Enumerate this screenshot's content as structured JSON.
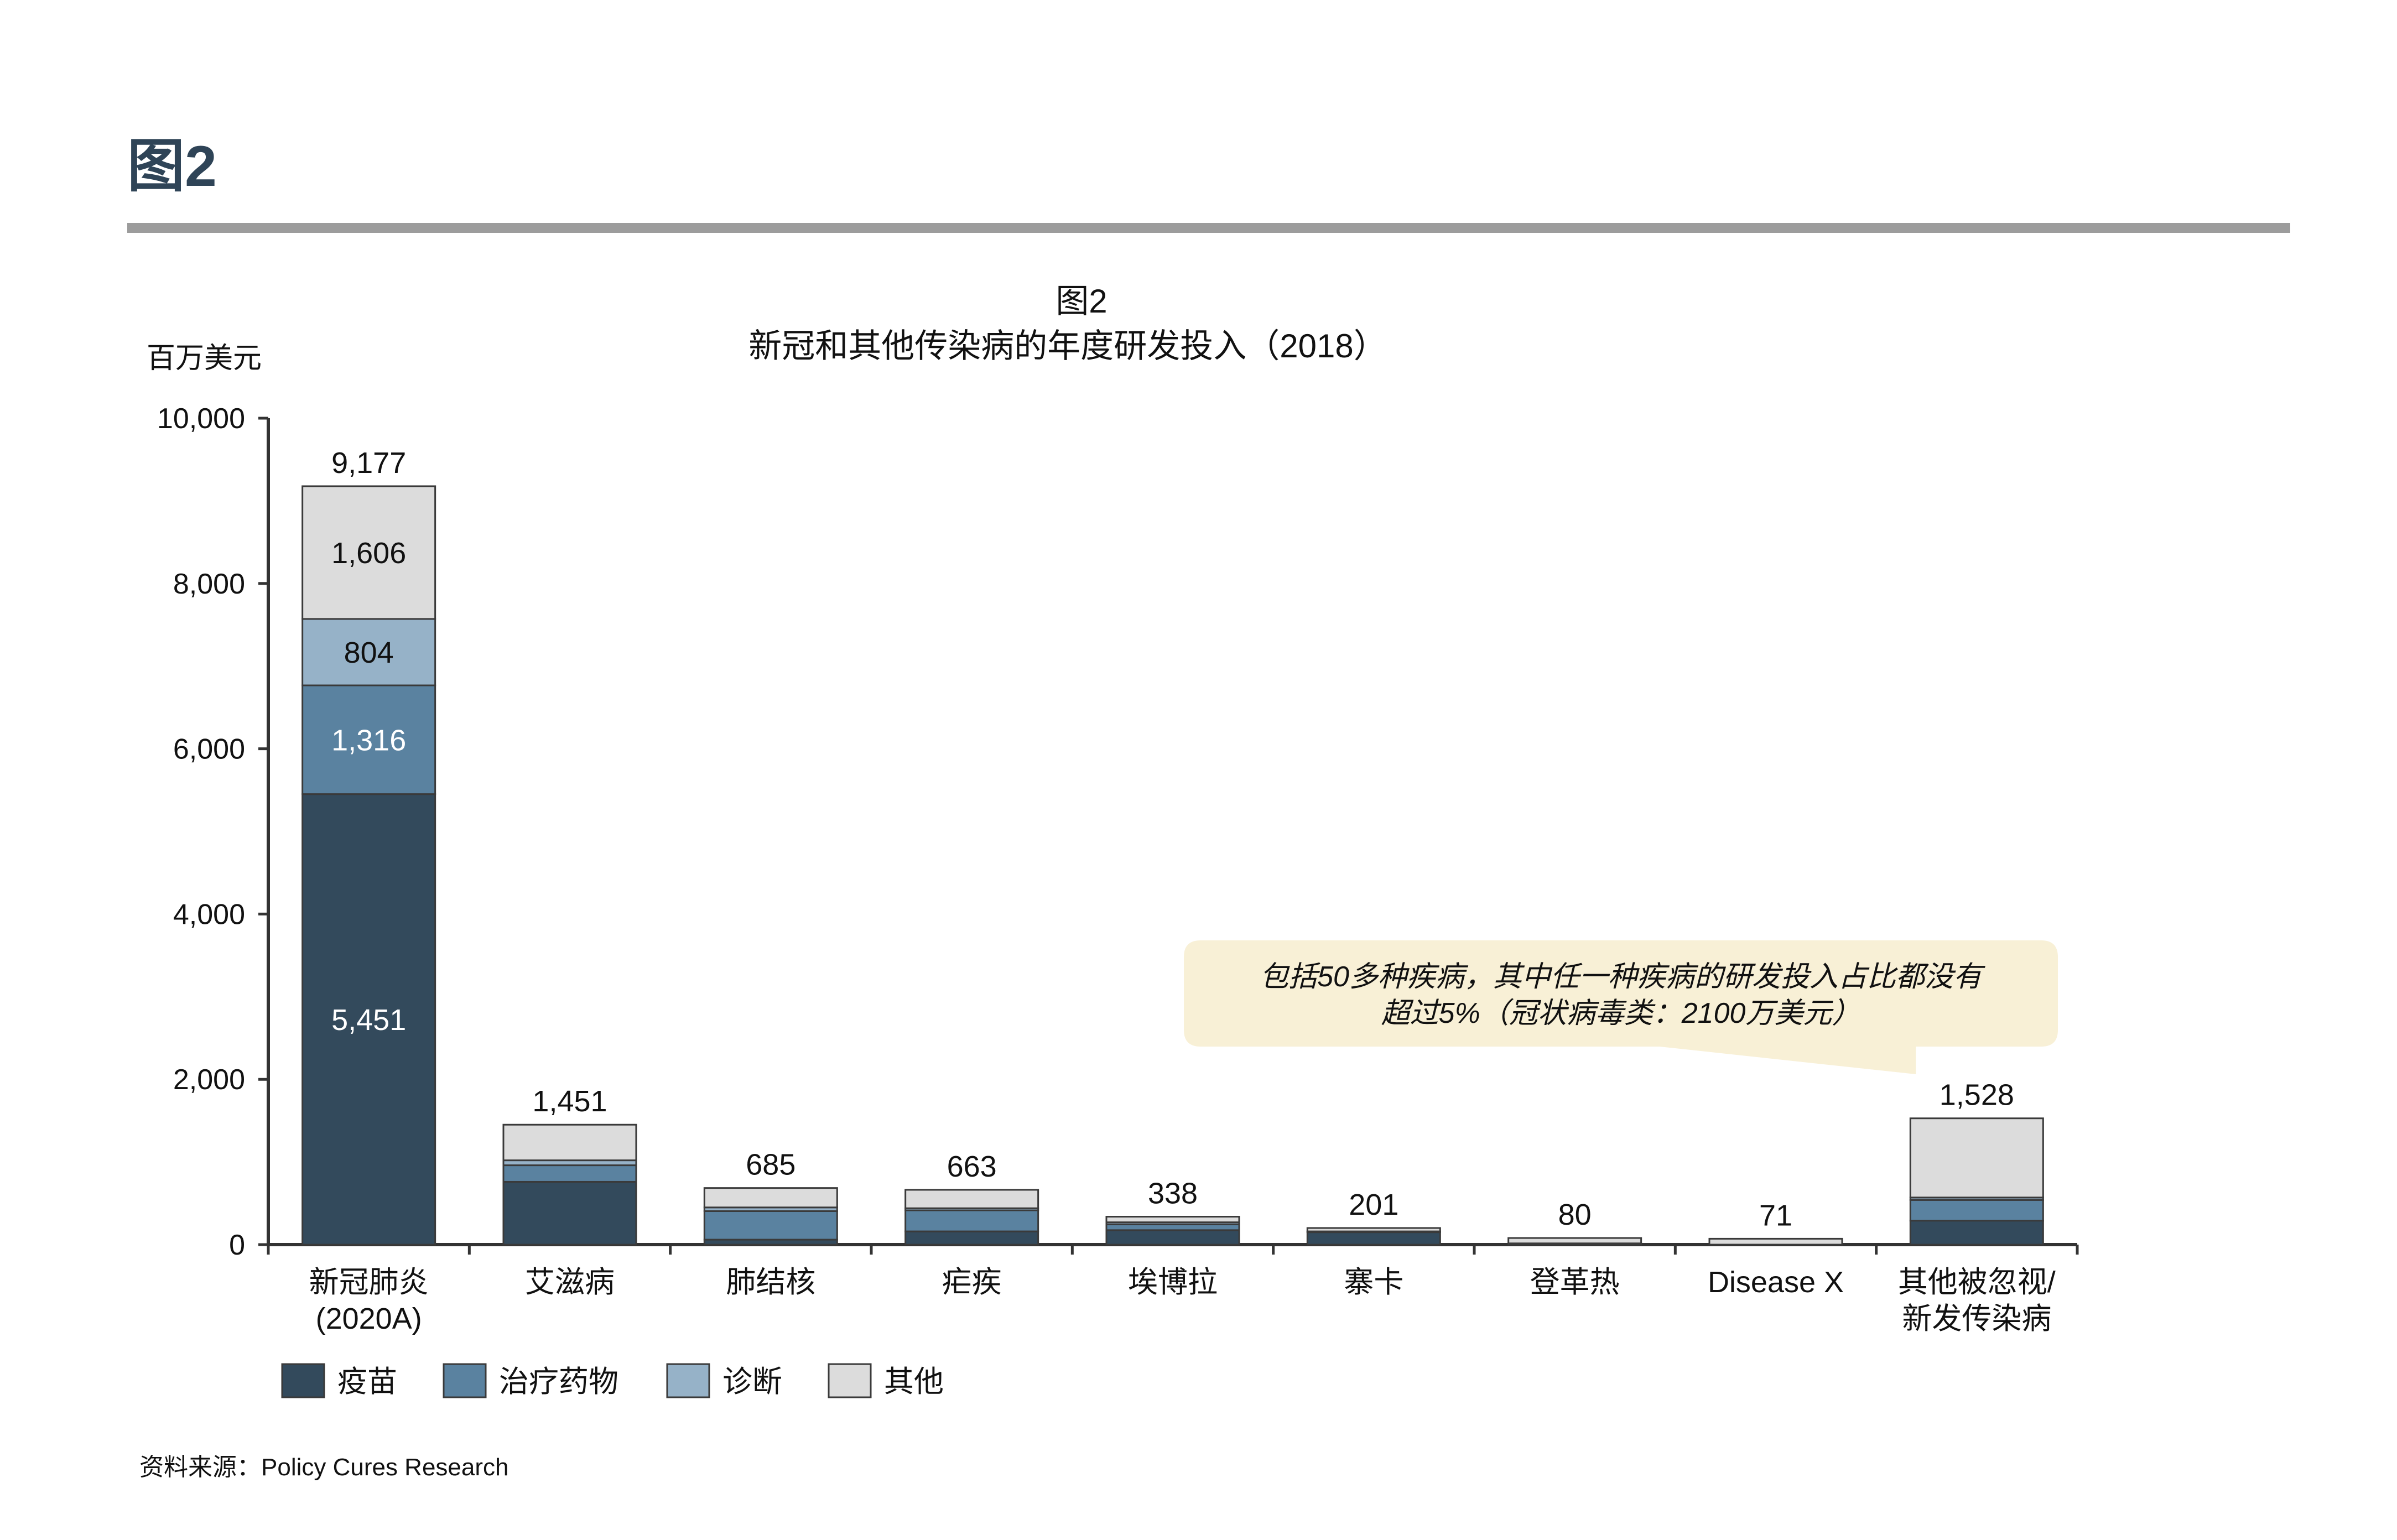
{
  "header": {
    "title": "图2"
  },
  "colors": {
    "vaccine": "#334a5c",
    "therapeutics": "#5a82a0",
    "diagnostics": "#96b2c8",
    "other": "#dcdcdc",
    "callout_bg": "#f8f0d6",
    "rule": "#9c9c9c",
    "title_text": "#2f4457"
  },
  "chart_data": {
    "type": "bar",
    "stacked": true,
    "title": "图2",
    "subtitle": "新冠和其他传染病的年度研发投入（2018）",
    "ylabel": "百万美元",
    "xlabel": "",
    "ylim": [
      0,
      10000
    ],
    "yticks": [
      0,
      2000,
      4000,
      6000,
      8000,
      10000
    ],
    "ytick_labels": [
      "0",
      "2,000",
      "4,000",
      "6,000",
      "8,000",
      "10,000"
    ],
    "grid": false,
    "legend_position": "bottom-left",
    "categories": [
      [
        "新冠肺炎",
        "(2020A)"
      ],
      [
        "艾滋病"
      ],
      [
        "肺结核"
      ],
      [
        "疟疾"
      ],
      [
        "埃博拉"
      ],
      [
        "寨卡"
      ],
      [
        "登革热"
      ],
      [
        "Disease X"
      ],
      [
        "其他被忽视/",
        "新发传染病"
      ]
    ],
    "series": [
      {
        "name": "疫苗",
        "color_key": "vaccine",
        "values": [
          5451,
          760,
          60,
          160,
          175,
          150,
          10,
          0,
          290
        ]
      },
      {
        "name": "治疗药物",
        "color_key": "therapeutics",
        "values": [
          1316,
          200,
          345,
          255,
          70,
          0,
          0,
          0,
          250
        ]
      },
      {
        "name": "诊断",
        "color_key": "diagnostics",
        "values": [
          804,
          60,
          45,
          25,
          25,
          10,
          5,
          0,
          30
        ]
      },
      {
        "name": "其他",
        "color_key": "other",
        "values": [
          1606,
          431,
          235,
          223,
          68,
          41,
          65,
          71,
          958
        ]
      }
    ],
    "totals": [
      9177,
      1451,
      685,
      663,
      338,
      201,
      80,
      71,
      1528
    ],
    "total_labels": [
      "9,177",
      "1,451",
      "685",
      "663",
      "338",
      "201",
      "80",
      "71",
      "1,528"
    ],
    "segment_labels": [
      {
        "category_index": 0,
        "series_index": 0,
        "text": "5,451"
      },
      {
        "category_index": 0,
        "series_index": 1,
        "text": "1,316"
      },
      {
        "category_index": 0,
        "series_index": 2,
        "text": "804"
      },
      {
        "category_index": 0,
        "series_index": 3,
        "text": "1,606"
      }
    ],
    "annotation": {
      "lines": [
        "包括50多种疾病，其中任一种疾病的研发投入占比都没有",
        "超过5%（冠状病毒类：2100万美元）"
      ],
      "points_to_category_index": 8
    }
  },
  "footer": {
    "source": "资料来源：Policy Cures Research"
  }
}
